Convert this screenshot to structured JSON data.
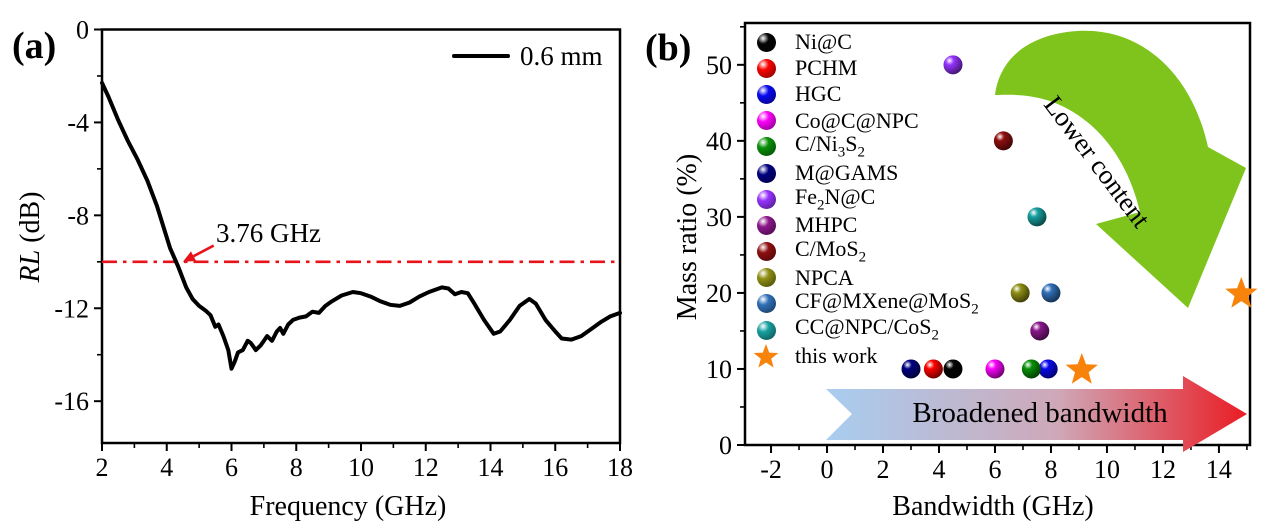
{
  "figure": {
    "background": "#ffffff",
    "panels": [
      {
        "label": "(a)"
      },
      {
        "label": "(b)"
      }
    ]
  },
  "panel_a": {
    "ylabel_html": "<i>RL</i> (dB)"
  },
  "chart_data": [
    {
      "id": "rl-vs-frequency",
      "type": "line",
      "xlabel": "Frequency (GHz)",
      "ylabel": "RL (dB)",
      "xlim": [
        2,
        18
      ],
      "ylim": [
        -17.8,
        0
      ],
      "x_ticks": [
        2,
        4,
        6,
        8,
        10,
        12,
        14,
        16,
        18
      ],
      "x_minor": [
        3,
        5,
        7,
        9,
        11,
        13,
        15,
        17
      ],
      "y_ticks": [
        0,
        -4,
        -8,
        -12,
        -16
      ],
      "y_minor": [
        -2,
        -6,
        -10,
        -14
      ],
      "grid": false,
      "legend_position": "top-right",
      "series": [
        {
          "name": "0.6 mm",
          "color": "#000000",
          "points": [
            [
              2.0,
              -2.3
            ],
            [
              2.2,
              -2.9
            ],
            [
              2.5,
              -3.9
            ],
            [
              2.8,
              -4.8
            ],
            [
              3.1,
              -5.6
            ],
            [
              3.4,
              -6.5
            ],
            [
              3.7,
              -7.6
            ],
            [
              3.9,
              -8.5
            ],
            [
              4.1,
              -9.4
            ],
            [
              4.35,
              -10.2
            ],
            [
              4.6,
              -11.1
            ],
            [
              4.8,
              -11.6
            ],
            [
              5.0,
              -11.9
            ],
            [
              5.2,
              -12.1
            ],
            [
              5.35,
              -12.3
            ],
            [
              5.5,
              -12.8
            ],
            [
              5.6,
              -12.7
            ],
            [
              5.75,
              -13.2
            ],
            [
              5.9,
              -13.8
            ],
            [
              6.0,
              -14.6
            ],
            [
              6.1,
              -14.3
            ],
            [
              6.2,
              -13.9
            ],
            [
              6.35,
              -13.8
            ],
            [
              6.5,
              -13.4
            ],
            [
              6.6,
              -13.5
            ],
            [
              6.75,
              -13.8
            ],
            [
              6.9,
              -13.6
            ],
            [
              7.0,
              -13.4
            ],
            [
              7.1,
              -13.2
            ],
            [
              7.25,
              -13.4
            ],
            [
              7.4,
              -13.0
            ],
            [
              7.5,
              -12.85
            ],
            [
              7.6,
              -13.1
            ],
            [
              7.75,
              -12.7
            ],
            [
              7.9,
              -12.5
            ],
            [
              8.1,
              -12.4
            ],
            [
              8.3,
              -12.35
            ],
            [
              8.5,
              -12.15
            ],
            [
              8.7,
              -12.2
            ],
            [
              8.9,
              -11.9
            ],
            [
              9.1,
              -11.7
            ],
            [
              9.4,
              -11.45
            ],
            [
              9.75,
              -11.3
            ],
            [
              10.0,
              -11.35
            ],
            [
              10.3,
              -11.5
            ],
            [
              10.6,
              -11.7
            ],
            [
              10.9,
              -11.85
            ],
            [
              11.2,
              -11.9
            ],
            [
              11.5,
              -11.75
            ],
            [
              11.8,
              -11.5
            ],
            [
              12.1,
              -11.3
            ],
            [
              12.5,
              -11.1
            ],
            [
              12.7,
              -11.15
            ],
            [
              12.9,
              -11.4
            ],
            [
              13.1,
              -11.3
            ],
            [
              13.3,
              -11.35
            ],
            [
              13.5,
              -11.8
            ],
            [
              13.8,
              -12.5
            ],
            [
              14.1,
              -13.1
            ],
            [
              14.3,
              -13.0
            ],
            [
              14.6,
              -12.5
            ],
            [
              14.9,
              -11.9
            ],
            [
              15.2,
              -11.6
            ],
            [
              15.4,
              -11.8
            ],
            [
              15.7,
              -12.5
            ],
            [
              16.0,
              -13.0
            ],
            [
              16.2,
              -13.3
            ],
            [
              16.5,
              -13.35
            ],
            [
              16.8,
              -13.2
            ],
            [
              17.1,
              -12.9
            ],
            [
              17.4,
              -12.6
            ],
            [
              17.7,
              -12.35
            ],
            [
              18.0,
              -12.2
            ]
          ]
        }
      ],
      "reference_line": {
        "y": -10,
        "color": "#e8121a",
        "style": "dash-dot"
      },
      "annotation": {
        "text": "3.76 GHz",
        "color": "#e8121a",
        "arrow_from": [
          5.45,
          -9.3
        ],
        "arrow_to": [
          4.5,
          -10.0
        ]
      }
    },
    {
      "id": "bandwidth-vs-mass-ratio",
      "type": "scatter",
      "xlabel": "Bandwidth (GHz)",
      "ylabel": "Mass ratio (%)",
      "xlim": [
        -2.93,
        15.11
      ],
      "ylim": [
        0,
        55.5
      ],
      "x_ticks": [
        -2,
        0,
        2,
        4,
        6,
        8,
        10,
        12,
        14
      ],
      "x_minor": [
        -1,
        1,
        3,
        5,
        7,
        9,
        11,
        13,
        15
      ],
      "y_ticks": [
        0,
        10,
        20,
        30,
        40,
        50
      ],
      "y_minor": [
        5,
        15,
        25,
        35,
        45,
        55
      ],
      "grid": false,
      "legend_position": "top-left",
      "points": [
        {
          "label": "Ni@C",
          "label_html": "Ni@C",
          "color": "#050505",
          "marker": "sphere",
          "xy": [
            [
              4.5,
              10
            ]
          ]
        },
        {
          "label": "PCHM",
          "label_html": "PCHM",
          "color": "#fb0200",
          "marker": "sphere",
          "xy": [
            [
              3.8,
              10
            ]
          ]
        },
        {
          "label": "HGC",
          "label_html": "HGC",
          "color": "#0808f0",
          "marker": "sphere",
          "xy": [
            [
              7.9,
              10
            ]
          ]
        },
        {
          "label": "Co@C@NPC",
          "label_html": "Co@C@NPC",
          "color": "#fb02fb",
          "marker": "sphere",
          "xy": [
            [
              6.0,
              10
            ]
          ]
        },
        {
          "label": "C/Ni3S2",
          "label_html": "C/Ni<sub>3</sub>S<sub>2</sub>",
          "color": "#089008",
          "marker": "sphere",
          "xy": [
            [
              7.3,
              10
            ]
          ]
        },
        {
          "label": "M@GAMS",
          "label_html": "M@GAMS",
          "color": "#000080",
          "marker": "sphere",
          "xy": [
            [
              3.0,
              10
            ]
          ]
        },
        {
          "label": "Fe2N@C",
          "label_html": "Fe<sub>2</sub>N@C",
          "color": "#9633ff",
          "marker": "sphere",
          "xy": [
            [
              4.5,
              50
            ]
          ]
        },
        {
          "label": "MHPC",
          "label_html": "MHPC",
          "color": "#8b178b",
          "marker": "sphere",
          "xy": [
            [
              7.6,
              15
            ]
          ]
        },
        {
          "label": "C/MoS2",
          "label_html": "C/MoS<sub>2</sub>",
          "color": "#8f0f0f",
          "marker": "sphere",
          "xy": [
            [
              6.3,
              40
            ]
          ]
        },
        {
          "label": "NPCA",
          "label_html": "NPCA",
          "color": "#8f8f15",
          "marker": "sphere",
          "xy": [
            [
              6.9,
              20
            ]
          ]
        },
        {
          "label": "CF@MXene@MoS2",
          "label_html": "CF@MXene@MoS<sub>2</sub>",
          "color": "#3070b8",
          "marker": "sphere",
          "xy": [
            [
              8.0,
              20
            ]
          ]
        },
        {
          "label": "CC@NPC/CoS2",
          "label_html": "CC@NPC/CoS<sub>2</sub>",
          "color": "#18a0a0",
          "marker": "sphere",
          "xy": [
            [
              7.5,
              30
            ]
          ]
        },
        {
          "label": "this work",
          "label_html": "this work",
          "color": "#f8830b",
          "marker": "star",
          "xy": [
            [
              9.1,
              10
            ],
            [
              14.8,
              20
            ]
          ]
        }
      ],
      "annotations": {
        "lower_content": {
          "text": "Lower content",
          "arrow_color": "#7ec41d",
          "direction": "curved-down-right"
        },
        "broadened_bandwidth": {
          "text": "Broadened bandwidth",
          "gradient": [
            "#a8cdf0",
            "#cfa8b8",
            "#ea1c24"
          ],
          "direction": "right"
        }
      }
    }
  ]
}
